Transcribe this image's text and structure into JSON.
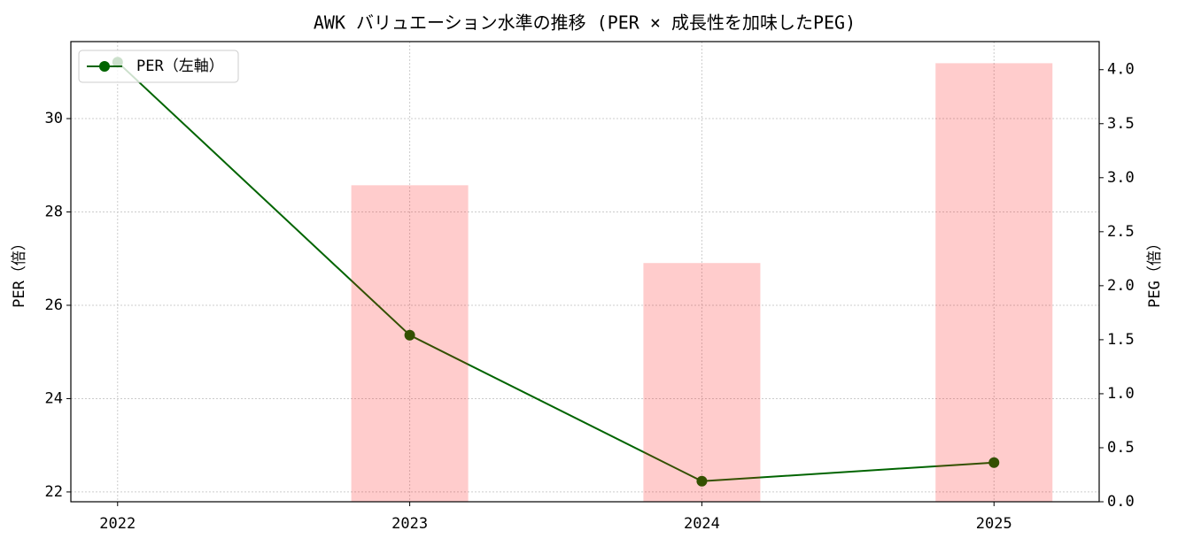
{
  "chart_data": {
    "type": "bar-line",
    "title": "AWK バリュエーション水準の推移 (PER × 成長性を加味したPEG)",
    "x": [
      2022,
      2023,
      2024,
      2025
    ],
    "xlim": [
      2021.84,
      2025.36
    ],
    "xticks": [
      2022,
      2023,
      2024,
      2025
    ],
    "ylabel": "PER（倍）",
    "y2label": "PEG（倍）",
    "ylim": [
      21.79,
      31.65
    ],
    "yticks": [
      22,
      24,
      26,
      28,
      30
    ],
    "y2lim": [
      0,
      4.26
    ],
    "y2ticks": [
      {
        "value": 0,
        "label": "0.0"
      },
      0.5,
      {
        "value": 1,
        "label": "1.0"
      },
      1.5,
      {
        "value": 2,
        "label": "2.0"
      },
      2.5,
      {
        "value": 3,
        "label": "3.0"
      },
      3.5,
      {
        "value": 4,
        "label": "4.0"
      }
    ],
    "grid": true,
    "legend": "upper-left",
    "series": [
      {
        "name": "PER（左軸）",
        "type": "line",
        "color": "#006400",
        "values": [
          31.21,
          25.36,
          22.23,
          22.63
        ]
      },
      {
        "type": "bar",
        "axis": "y2",
        "color": "#ff0000",
        "opacity": 0.2,
        "values": [
          null,
          2.93,
          2.21,
          4.06
        ]
      }
    ]
  }
}
